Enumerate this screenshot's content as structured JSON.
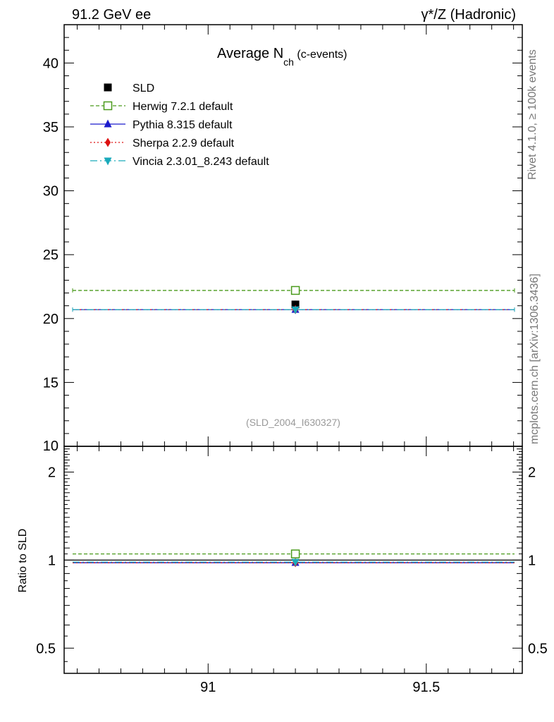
{
  "header": {
    "left": "91.2 GeV ee",
    "right": "γ*/Z (Hadronic)"
  },
  "side_labels": {
    "top": "Rivet 4.1.0, ≥ 100k events",
    "bottom": "mcplots.cern.ch [arXiv:1306.3436]"
  },
  "watermark": "(SLD_2004_I630327)",
  "chart_data": [
    {
      "type": "line",
      "title_main": "Average N",
      "title_sub": "ch",
      "title_suffix": "(c-events)",
      "xlim": [
        90.67,
        91.72
      ],
      "ylim": [
        10,
        43
      ],
      "x_ticks": [
        91,
        91.5
      ],
      "x_tick_labels": [
        "91",
        "91.5"
      ],
      "y_ticks": [
        15,
        20,
        25,
        30,
        35,
        40
      ],
      "y_tick_labels": [
        "15",
        "20",
        "25",
        "30",
        "35",
        "40"
      ],
      "y_edge_label": "10",
      "series": [
        {
          "name": "SLD",
          "color": "#000000",
          "marker": "square",
          "x": 91.2,
          "y": 21.1,
          "yerr": 0.3
        },
        {
          "name": "Herwig 7.2.1 default",
          "color": "#4a9a1c",
          "marker": "open-square",
          "dash": "5,3",
          "x": 91.2,
          "y": 22.2
        },
        {
          "name": "Pythia 8.315 default",
          "color": "#1a1acc",
          "marker": "triangle-up",
          "dash": "",
          "x": 91.2,
          "y": 20.7
        },
        {
          "name": "Sherpa 2.2.9 default",
          "color": "#dd1111",
          "marker": "diamond",
          "dash": "2,3",
          "x": 91.2,
          "y": 20.7
        },
        {
          "name": "Vincia 2.3.01_8.243 default",
          "color": "#1aaabb",
          "marker": "triangle-down",
          "dash": "10,4,2,4",
          "x": 91.2,
          "y": 20.7
        }
      ]
    },
    {
      "type": "line",
      "ylabel": "Ratio to SLD",
      "xlim": [
        90.67,
        91.72
      ],
      "ylim": [
        0.41,
        2.45
      ],
      "log_y": true,
      "y_ticks": [
        0.5,
        1,
        2
      ],
      "y_tick_labels": [
        "0.5",
        "1",
        "2"
      ],
      "series": [
        {
          "name": "Herwig 7.2.1 default",
          "color": "#4a9a1c",
          "x": 91.2,
          "y": 1.05
        },
        {
          "name": "Pythia 8.315 default",
          "color": "#1a1acc",
          "x": 91.2,
          "y": 0.98
        },
        {
          "name": "Sherpa 2.2.9 default",
          "color": "#dd1111",
          "x": 91.2,
          "y": 0.98
        },
        {
          "name": "Vincia 2.3.01_8.243 default",
          "color": "#1aaabb",
          "x": 91.2,
          "y": 0.985
        }
      ]
    }
  ]
}
